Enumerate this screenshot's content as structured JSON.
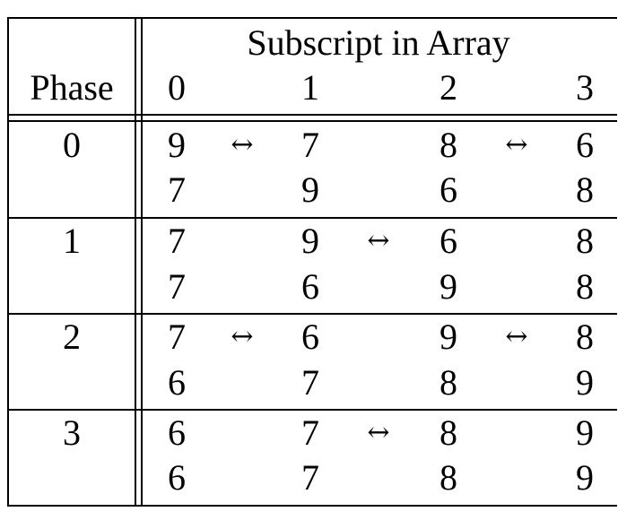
{
  "table": {
    "header": {
      "group_label": "Subscript in Array",
      "phase_label": "Phase",
      "columns": [
        "0",
        "1",
        "2",
        "3"
      ]
    },
    "arrow_glyph": "↔",
    "phases": [
      {
        "phase": "0",
        "rows": [
          {
            "values": [
              "9",
              "7",
              "8",
              "6"
            ],
            "swaps": [
              true,
              false,
              true
            ]
          },
          {
            "values": [
              "7",
              "9",
              "6",
              "8"
            ],
            "swaps": [
              false,
              false,
              false
            ]
          }
        ]
      },
      {
        "phase": "1",
        "rows": [
          {
            "values": [
              "7",
              "9",
              "6",
              "8"
            ],
            "swaps": [
              false,
              true,
              false
            ]
          },
          {
            "values": [
              "7",
              "6",
              "9",
              "8"
            ],
            "swaps": [
              false,
              false,
              false
            ]
          }
        ]
      },
      {
        "phase": "2",
        "rows": [
          {
            "values": [
              "7",
              "6",
              "9",
              "8"
            ],
            "swaps": [
              true,
              false,
              true
            ]
          },
          {
            "values": [
              "6",
              "7",
              "8",
              "9"
            ],
            "swaps": [
              false,
              false,
              false
            ]
          }
        ]
      },
      {
        "phase": "3",
        "rows": [
          {
            "values": [
              "6",
              "7",
              "8",
              "9"
            ],
            "swaps": [
              false,
              true,
              false
            ]
          },
          {
            "values": [
              "6",
              "7",
              "8",
              "9"
            ],
            "swaps": [
              false,
              false,
              false
            ]
          }
        ]
      }
    ]
  }
}
